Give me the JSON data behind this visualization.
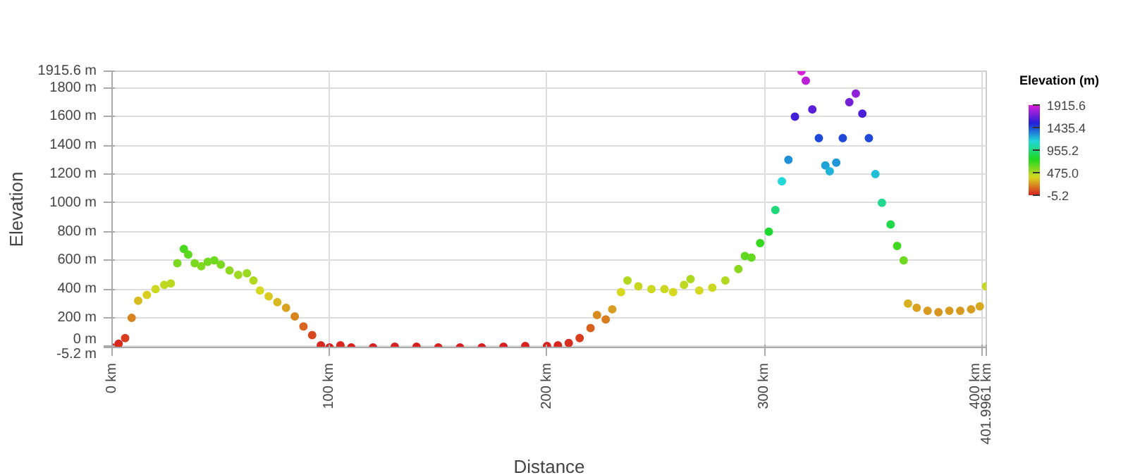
{
  "chart_data": {
    "type": "scatter",
    "xlabel": "Distance",
    "ylabel": "Elevation",
    "clabel": "Elevation (m)",
    "xlim": [
      0,
      401.9961
    ],
    "ylim": [
      -5.2,
      1915.6
    ],
    "xticks": [
      {
        "value": 0,
        "label": "0 km"
      },
      {
        "value": 100,
        "label": "100 km"
      },
      {
        "value": 200,
        "label": "200 km"
      },
      {
        "value": 300,
        "label": "300 km"
      },
      {
        "value": 400,
        "label": "400 km"
      },
      {
        "value": 401.9961,
        "label": "401.9961 km"
      }
    ],
    "yticks": [
      {
        "value": -5.2,
        "label": "-5.2 m"
      },
      {
        "value": 0,
        "label": "0 m"
      },
      {
        "value": 200,
        "label": "200 m"
      },
      {
        "value": 400,
        "label": "400 m"
      },
      {
        "value": 600,
        "label": "600 m"
      },
      {
        "value": 800,
        "label": "800 m"
      },
      {
        "value": 1000,
        "label": "1000 m"
      },
      {
        "value": 1200,
        "label": "1200 m"
      },
      {
        "value": 1400,
        "label": "1400 m"
      },
      {
        "value": 1600,
        "label": "1600 m"
      },
      {
        "value": 1800,
        "label": "1800 m"
      },
      {
        "value": 1915.6,
        "label": "1915.6 m"
      }
    ],
    "clim": [
      -5.2,
      1915.6
    ],
    "cticks": [
      {
        "value": 1915.6,
        "label": "1915.6"
      },
      {
        "value": 1435.4,
        "label": "1435.4"
      },
      {
        "value": 955.2,
        "label": "955.2"
      },
      {
        "value": 475,
        "label": "475.0"
      },
      {
        "value": -5.2,
        "label": "-5.2"
      }
    ],
    "grid": true,
    "marker": "circle",
    "x": [
      0,
      3,
      6,
      9,
      12,
      16,
      20,
      24,
      27,
      30,
      33,
      35,
      38,
      41,
      44,
      47,
      50,
      54,
      58,
      62,
      65,
      68,
      72,
      76,
      80,
      84,
      88,
      92,
      96,
      100,
      105,
      110,
      120,
      130,
      140,
      150,
      160,
      170,
      180,
      190,
      200,
      205,
      210,
      215,
      220,
      223,
      227,
      230,
      234,
      237,
      242,
      248,
      254,
      258,
      263,
      266,
      270,
      276,
      282,
      288,
      291,
      294,
      298,
      302,
      305,
      308,
      311,
      314,
      317,
      319,
      322,
      325,
      328,
      330,
      333,
      336,
      339,
      342,
      345,
      348,
      351,
      354,
      358,
      361,
      364,
      366,
      370,
      375,
      380,
      385,
      390,
      395,
      399,
      401.9
    ],
    "values": [
      -5,
      20,
      60,
      200,
      320,
      360,
      400,
      430,
      440,
      580,
      680,
      640,
      580,
      560,
      590,
      600,
      570,
      530,
      500,
      510,
      460,
      390,
      350,
      310,
      270,
      210,
      140,
      80,
      10,
      -5,
      10,
      -5,
      -5,
      0,
      0,
      -5,
      -5,
      -5,
      0,
      5,
      5,
      10,
      25,
      60,
      130,
      220,
      190,
      260,
      380,
      460,
      420,
      400,
      400,
      380,
      430,
      470,
      390,
      410,
      460,
      540,
      630,
      620,
      720,
      800,
      950,
      1150,
      1300,
      1600,
      1915,
      1850,
      1650,
      1450,
      1260,
      1220,
      1280,
      1450,
      1700,
      1760,
      1620,
      1450,
      1200,
      1000,
      850,
      700,
      600,
      300,
      270,
      250,
      240,
      250,
      250,
      260,
      280,
      420
    ],
    "cvalues": [
      -5,
      20,
      60,
      200,
      320,
      360,
      400,
      430,
      440,
      580,
      680,
      640,
      580,
      560,
      590,
      600,
      570,
      530,
      500,
      510,
      460,
      390,
      350,
      310,
      270,
      210,
      140,
      80,
      10,
      -5,
      10,
      -5,
      -5,
      0,
      0,
      -5,
      -5,
      -5,
      0,
      5,
      5,
      10,
      25,
      60,
      130,
      220,
      190,
      260,
      380,
      460,
      420,
      400,
      400,
      380,
      430,
      470,
      390,
      410,
      460,
      540,
      630,
      620,
      720,
      800,
      950,
      1150,
      1300,
      1600,
      1915,
      1850,
      1650,
      1450,
      1260,
      1220,
      1280,
      1450,
      1700,
      1760,
      1620,
      1450,
      1200,
      1000,
      850,
      700,
      600,
      300,
      270,
      250,
      240,
      250,
      250,
      260,
      280,
      420
    ]
  }
}
